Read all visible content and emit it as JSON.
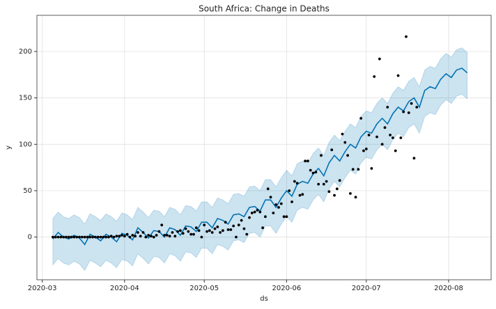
{
  "chart_data": {
    "type": "forecast",
    "title": "South Africa: Change in Deaths",
    "xlabel": "ds",
    "ylabel": "y",
    "xlim": [
      "2020-02-28",
      "2020-08-17"
    ],
    "xticks": [
      {
        "value": "2020-03-01",
        "label": "2020-03"
      },
      {
        "value": "2020-04-01",
        "label": "2020-04"
      },
      {
        "value": "2020-05-01",
        "label": "2020-05"
      },
      {
        "value": "2020-06-01",
        "label": "2020-06"
      },
      {
        "value": "2020-07-01",
        "label": "2020-07"
      },
      {
        "value": "2020-08-01",
        "label": "2020-08"
      }
    ],
    "ylim": [
      -46,
      239
    ],
    "yticks": [
      0,
      50,
      100,
      150,
      200
    ],
    "grid": true,
    "points": {
      "color": "#000000",
      "x": [
        "2020-03-05",
        "2020-03-06",
        "2020-03-07",
        "2020-03-08",
        "2020-03-09",
        "2020-03-10",
        "2020-03-11",
        "2020-03-12",
        "2020-03-13",
        "2020-03-14",
        "2020-03-15",
        "2020-03-16",
        "2020-03-17",
        "2020-03-18",
        "2020-03-19",
        "2020-03-20",
        "2020-03-21",
        "2020-03-22",
        "2020-03-23",
        "2020-03-24",
        "2020-03-25",
        "2020-03-26",
        "2020-03-27",
        "2020-03-28",
        "2020-03-29",
        "2020-03-30",
        "2020-03-31",
        "2020-04-01",
        "2020-04-02",
        "2020-04-03",
        "2020-04-04",
        "2020-04-05",
        "2020-04-06",
        "2020-04-07",
        "2020-04-08",
        "2020-04-09",
        "2020-04-10",
        "2020-04-11",
        "2020-04-12",
        "2020-04-13",
        "2020-04-14",
        "2020-04-15",
        "2020-04-16",
        "2020-04-17",
        "2020-04-18",
        "2020-04-19",
        "2020-04-20",
        "2020-04-21",
        "2020-04-22",
        "2020-04-23",
        "2020-04-24",
        "2020-04-25",
        "2020-04-26",
        "2020-04-27",
        "2020-04-28",
        "2020-04-29",
        "2020-04-30",
        "2020-05-01",
        "2020-05-02",
        "2020-05-03",
        "2020-05-04",
        "2020-05-05",
        "2020-05-06",
        "2020-05-07",
        "2020-05-08",
        "2020-05-09",
        "2020-05-10",
        "2020-05-11",
        "2020-05-12",
        "2020-05-13",
        "2020-05-14",
        "2020-05-15",
        "2020-05-16",
        "2020-05-17",
        "2020-05-18",
        "2020-05-19",
        "2020-05-20",
        "2020-05-21",
        "2020-05-22",
        "2020-05-23",
        "2020-05-24",
        "2020-05-25",
        "2020-05-26",
        "2020-05-27",
        "2020-05-28",
        "2020-05-29",
        "2020-05-30",
        "2020-05-31",
        "2020-06-01",
        "2020-06-02",
        "2020-06-03",
        "2020-06-04",
        "2020-06-05",
        "2020-06-06",
        "2020-06-07",
        "2020-06-08",
        "2020-06-09",
        "2020-06-10",
        "2020-06-11",
        "2020-06-12",
        "2020-06-13",
        "2020-06-14",
        "2020-06-15",
        "2020-06-16",
        "2020-06-17",
        "2020-06-18",
        "2020-06-19",
        "2020-06-20",
        "2020-06-21",
        "2020-06-22",
        "2020-06-23",
        "2020-06-24",
        "2020-06-25",
        "2020-06-26",
        "2020-06-27",
        "2020-06-28",
        "2020-06-29",
        "2020-06-30",
        "2020-07-01",
        "2020-07-02",
        "2020-07-03",
        "2020-07-04",
        "2020-07-05",
        "2020-07-06",
        "2020-07-07",
        "2020-07-08",
        "2020-07-09",
        "2020-07-10",
        "2020-07-11",
        "2020-07-12",
        "2020-07-13",
        "2020-07-14",
        "2020-07-15",
        "2020-07-16",
        "2020-07-17",
        "2020-07-18",
        "2020-07-19",
        "2020-07-20"
      ],
      "values": [
        0,
        0,
        0,
        0,
        0,
        0,
        0,
        0,
        0,
        0,
        0,
        0,
        0,
        0,
        0,
        0,
        0,
        0,
        0,
        0,
        0,
        0,
        1,
        0,
        1,
        1,
        2,
        1,
        3,
        0,
        2,
        1,
        5,
        1,
        5,
        0,
        2,
        1,
        0,
        2,
        6,
        13,
        2,
        2,
        1,
        5,
        1,
        6,
        7,
        4,
        9,
        6,
        3,
        3,
        10,
        7,
        0,
        13,
        6,
        7,
        5,
        9,
        11,
        5,
        7,
        16,
        8,
        8,
        12,
        0,
        13,
        18,
        9,
        3,
        21,
        26,
        27,
        29,
        27,
        10,
        22,
        52,
        43,
        26,
        35,
        32,
        36,
        22,
        22,
        50,
        38,
        60,
        58,
        45,
        46,
        82,
        82,
        72,
        69,
        70,
        57,
        88,
        57,
        60,
        49,
        94,
        45,
        52,
        61,
        111,
        102,
        88,
        47,
        73,
        43,
        73,
        128,
        93,
        95,
        110,
        74,
        173,
        108,
        192,
        100,
        118,
        140,
        110,
        107,
        93,
        174,
        107,
        135,
        216,
        134,
        144,
        85,
        140
      ]
    },
    "forecast": {
      "color": "#0072b2",
      "band_color": "#0072b2",
      "x": [
        "2020-03-05",
        "2020-03-07",
        "2020-03-09",
        "2020-03-11",
        "2020-03-13",
        "2020-03-15",
        "2020-03-17",
        "2020-03-19",
        "2020-03-21",
        "2020-03-23",
        "2020-03-25",
        "2020-03-27",
        "2020-03-29",
        "2020-03-31",
        "2020-04-02",
        "2020-04-04",
        "2020-04-06",
        "2020-04-08",
        "2020-04-10",
        "2020-04-12",
        "2020-04-14",
        "2020-04-16",
        "2020-04-18",
        "2020-04-20",
        "2020-04-22",
        "2020-04-24",
        "2020-04-26",
        "2020-04-28",
        "2020-04-30",
        "2020-05-02",
        "2020-05-04",
        "2020-05-06",
        "2020-05-08",
        "2020-05-10",
        "2020-05-12",
        "2020-05-14",
        "2020-05-16",
        "2020-05-18",
        "2020-05-20",
        "2020-05-22",
        "2020-05-24",
        "2020-05-26",
        "2020-05-28",
        "2020-05-30",
        "2020-06-01",
        "2020-06-03",
        "2020-06-05",
        "2020-06-07",
        "2020-06-09",
        "2020-06-11",
        "2020-06-13",
        "2020-06-15",
        "2020-06-17",
        "2020-06-19",
        "2020-06-21",
        "2020-06-23",
        "2020-06-25",
        "2020-06-27",
        "2020-06-29",
        "2020-07-01",
        "2020-07-03",
        "2020-07-05",
        "2020-07-07",
        "2020-07-09",
        "2020-07-11",
        "2020-07-13",
        "2020-07-15",
        "2020-07-17",
        "2020-07-19",
        "2020-07-21",
        "2020-07-23",
        "2020-07-25",
        "2020-07-27",
        "2020-07-29",
        "2020-07-31",
        "2020-08-02",
        "2020-08-04",
        "2020-08-06",
        "2020-08-08"
      ],
      "values": [
        -2,
        5,
        0,
        -2,
        2,
        -1,
        -8,
        3,
        0,
        -4,
        3,
        0,
        -5,
        4,
        2,
        -3,
        10,
        5,
        -1,
        7,
        6,
        0,
        10,
        8,
        2,
        12,
        11,
        6,
        16,
        16,
        10,
        20,
        18,
        14,
        24,
        25,
        22,
        32,
        33,
        28,
        40,
        40,
        32,
        42,
        50,
        44,
        57,
        60,
        58,
        68,
        74,
        66,
        80,
        88,
        82,
        92,
        100,
        96,
        108,
        114,
        112,
        122,
        128,
        122,
        133,
        140,
        136,
        146,
        150,
        140,
        158,
        162,
        160,
        170,
        176,
        172,
        180,
        182,
        177
      ],
      "lower": [
        -30,
        -23,
        -28,
        -30,
        -26,
        -29,
        -36,
        -25,
        -28,
        -32,
        -25,
        -28,
        -33,
        -24,
        -26,
        -31,
        -18,
        -23,
        -29,
        -21,
        -22,
        -28,
        -18,
        -20,
        -26,
        -16,
        -17,
        -22,
        -12,
        -12,
        -18,
        -8,
        -10,
        -14,
        -4,
        -3,
        -6,
        4,
        5,
        0,
        12,
        12,
        4,
        14,
        22,
        16,
        29,
        32,
        30,
        40,
        46,
        38,
        52,
        60,
        54,
        64,
        72,
        68,
        80,
        86,
        84,
        94,
        100,
        94,
        105,
        112,
        108,
        118,
        122,
        112,
        130,
        134,
        132,
        142,
        148,
        144,
        152,
        154,
        149
      ],
      "upper": [
        20,
        27,
        22,
        20,
        24,
        21,
        14,
        25,
        22,
        18,
        25,
        22,
        17,
        26,
        24,
        19,
        32,
        27,
        21,
        29,
        28,
        22,
        32,
        30,
        24,
        34,
        33,
        28,
        38,
        38,
        32,
        42,
        40,
        36,
        46,
        47,
        44,
        54,
        55,
        50,
        62,
        62,
        54,
        64,
        72,
        66,
        79,
        82,
        80,
        90,
        96,
        88,
        102,
        110,
        104,
        114,
        122,
        118,
        130,
        136,
        134,
        144,
        150,
        144,
        155,
        162,
        158,
        168,
        172,
        162,
        180,
        184,
        182,
        192,
        198,
        194,
        202,
        204,
        199
      ]
    }
  }
}
